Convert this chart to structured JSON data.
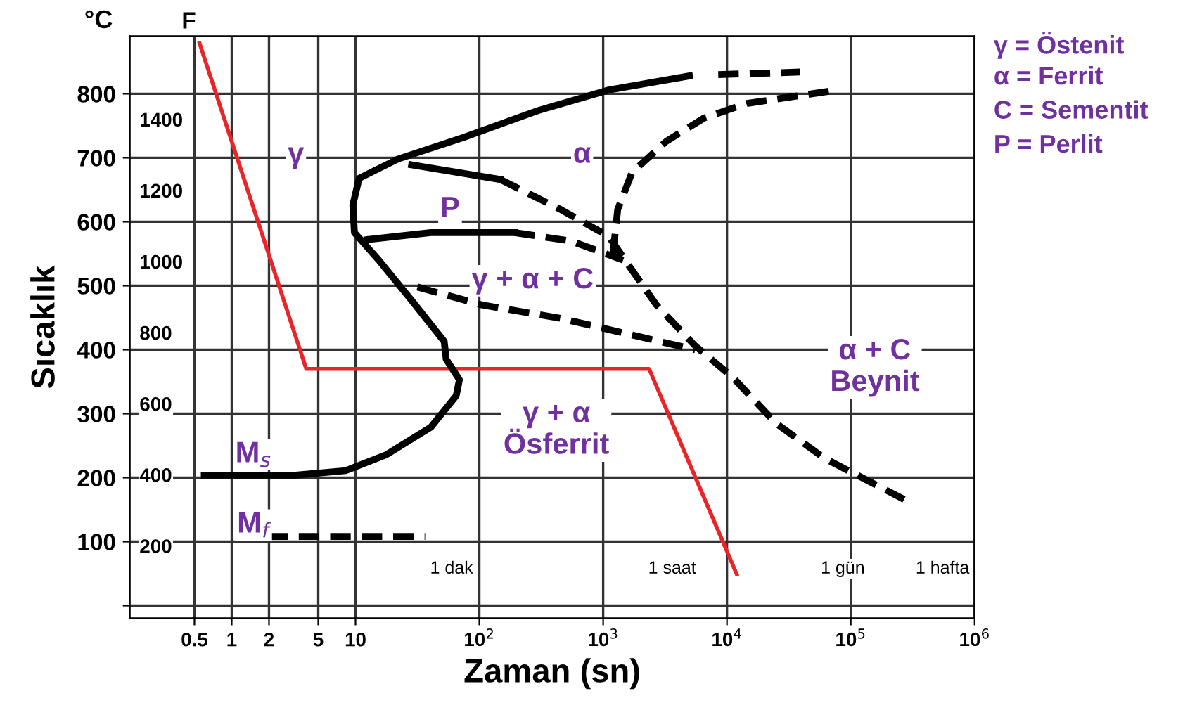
{
  "chart_data": {
    "type": "line",
    "xlabel": "Zaman (sn)",
    "ylabel": "Sıcaklık",
    "y2label": "F",
    "log": "x",
    "xlim": [
      0.15,
      1000000
    ],
    "ylim": [
      -20,
      890
    ],
    "y2lim": [
      -4,
      1634
    ],
    "xticks": [
      0.5,
      1,
      2,
      5,
      10,
      {
        "value": 100,
        "label": "10$^{2}$"
      },
      {
        "value": 1000,
        "label": "10$^{3}$"
      },
      {
        "value": 10000,
        "label": "10$^{4}$"
      },
      {
        "value": 100000,
        "label": "10$^{5}$"
      },
      {
        "value": 1000000,
        "label": "10$^{6}$"
      }
    ],
    "yticks": [
      {
        "value": 0,
        "label": null
      },
      100,
      200,
      300,
      400,
      500,
      600,
      700,
      800
    ],
    "y2ticks": [
      200,
      400,
      600,
      800,
      1000,
      1200,
      1400
    ],
    "grid": true,
    "legend": false,
    "series": [
      {
        "color": "#e8262a",
        "line_style": "solid",
        "x": [
          0.55,
          4,
          2350,
          12000
        ],
        "values": [
          879,
          370,
          370,
          49
        ]
      },
      {
        "color": "#000000",
        "line_style": "solid",
        "x": [
          0.6,
          3.3,
          8.3,
          17.8,
          40.6,
          65,
          69,
          54,
          52,
          28.4,
          15.4,
          9.8,
          9.5,
          10.7,
          22,
          75,
          300,
          1110,
          4980
        ],
        "values": [
          204,
          204,
          211,
          236,
          279,
          328,
          353,
          385,
          413,
          477,
          540,
          583,
          626,
          668,
          698,
          732,
          774,
          806,
          828
        ]
      },
      {
        "color": "#000000",
        "line_style": "dashed",
        "x": [
          8500,
          39000
        ],
        "values": [
          830,
          834
        ]
      },
      {
        "color": "#000000",
        "line_style": "dashed",
        "x": [
          1200,
          1310,
          1710,
          3250,
          6520,
          14500,
          67000
        ],
        "values": [
          549,
          619,
          677,
          726,
          762,
          785,
          804
        ]
      },
      {
        "color": "#000000",
        "line_style": "solid",
        "x": [
          28.4,
          148
        ],
        "values": [
          689,
          666
        ]
      },
      {
        "color": "#000000",
        "line_style": "dashed",
        "x": [
          148,
          456,
          1110,
          1580,
          2690,
          5540,
          11100,
          24900,
          61700,
          270000
        ],
        "values": [
          666,
          619,
          577,
          534,
          470,
          406,
          357,
          285,
          230,
          166
        ]
      },
      {
        "color": "#000000",
        "line_style": "solid",
        "x": [
          12.4,
          40.6,
          192
        ],
        "values": [
          572,
          583,
          583
        ]
      },
      {
        "color": "#000000",
        "line_style": "dashed",
        "x": [
          192,
          548,
          1450
        ],
        "values": [
          583,
          570,
          540
        ]
      },
      {
        "color": "#000000",
        "line_style": "dashed",
        "x": [
          31.6,
          105,
          456,
          1900,
          5540
        ],
        "values": [
          498,
          470,
          449,
          421,
          400
        ]
      },
      {
        "color": "#000000",
        "line_style": "dashed",
        "x": [
          1.08,
          36.5
        ],
        "values": [
          108,
          108
        ]
      }
    ],
    "annotations": [
      "°C",
      "γ = Östenit",
      "α = Ferrit",
      "C = Sementit",
      "P = Perlit",
      "γ + α + C",
      "γ + α\nÖsferrit",
      "α + C\nBeynit",
      "1 dak",
      "1 saat",
      "1 gün",
      "1 hafta",
      {
        "text": "γ",
        "x": 3.3,
        "y": 704
      },
      {
        "text": "α",
        "x": 676,
        "y": 704
      },
      {
        "text": "P",
        "x": 58,
        "y": 619
      },
      {
        "text": "M$_{s}$",
        "x": 1.5,
        "y": 236
      },
      {
        "text": "M$_{f}$",
        "x": 1.5,
        "y": 126
      }
    ]
  }
}
